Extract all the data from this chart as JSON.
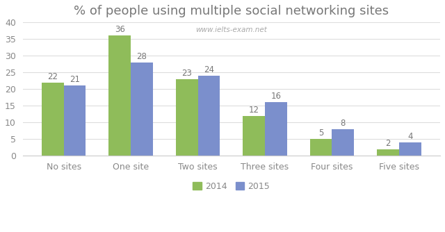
{
  "title": "% of people using multiple social networking sites",
  "watermark": "www.ielts-exam.net",
  "categories": [
    "No sites",
    "One site",
    "Two sites",
    "Three sites",
    "Four sites",
    "Five sites"
  ],
  "values_2014": [
    22,
    36,
    23,
    12,
    5,
    2
  ],
  "values_2015": [
    21,
    28,
    24,
    16,
    8,
    4
  ],
  "color_2014": "#8FBC5A",
  "color_2015": "#7B8FCC",
  "ylim": [
    0,
    40
  ],
  "yticks": [
    0,
    5,
    10,
    15,
    20,
    25,
    30,
    35,
    40
  ],
  "legend_labels": [
    "2014",
    "2015"
  ],
  "bar_width": 0.33,
  "title_fontsize": 13,
  "label_fontsize": 8.5,
  "tick_fontsize": 9,
  "legend_fontsize": 9,
  "title_color": "#777777",
  "label_color": "#777777",
  "tick_color": "#888888",
  "watermark_color": "#aaaaaa",
  "background_color": "#ffffff"
}
